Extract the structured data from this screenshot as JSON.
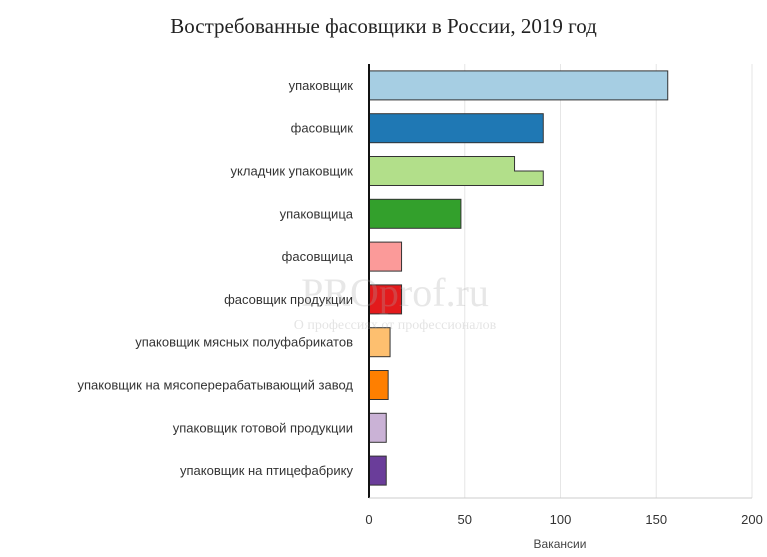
{
  "chart_data": {
    "type": "bar",
    "orientation": "horizontal",
    "title": "Востребованные фасовщики в России, 2019 год",
    "xlabel": "Вакансии",
    "ylabel": "",
    "xlim": [
      0,
      200
    ],
    "xticks": [
      0,
      50,
      100,
      150,
      200
    ],
    "grid": true,
    "categories": [
      "упаковщик",
      "фасовщик",
      "укладчик упаковщик",
      "упаковщица",
      "фасовщица",
      "фасовщик продукции",
      "упаковщик мясных полуфабрикатов",
      "упаковщик на мясоперерабатывающий завод",
      "упаковщик готовой продукции",
      "упаковщик на птицефабрику"
    ],
    "values": [
      156,
      91,
      91,
      48,
      17,
      17,
      11,
      10,
      9,
      9
    ],
    "secondary_values": [
      null,
      null,
      76,
      null,
      null,
      null,
      null,
      null,
      null,
      null
    ],
    "colors": [
      "#a6cee3",
      "#1f78b4",
      "#b2df8a",
      "#33a02c",
      "#fb9a99",
      "#e31a1c",
      "#fdbf6f",
      "#ff7f00",
      "#cab2d6",
      "#6a3d9a"
    ]
  },
  "watermark": {
    "main": "PROprof.ru",
    "sub": "О профессиях от профессионалов"
  }
}
